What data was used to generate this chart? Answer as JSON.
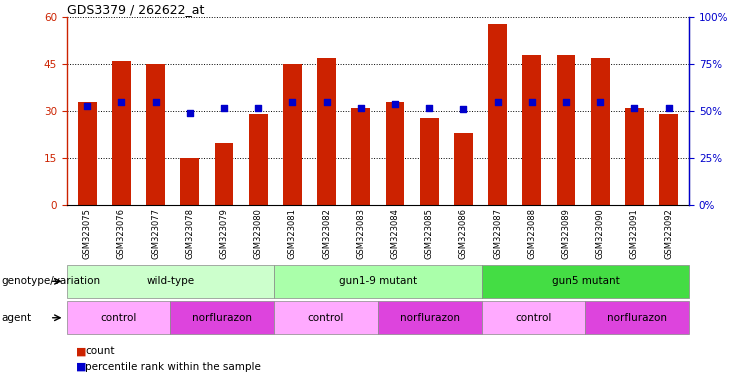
{
  "title": "GDS3379 / 262622_at",
  "samples": [
    "GSM323075",
    "GSM323076",
    "GSM323077",
    "GSM323078",
    "GSM323079",
    "GSM323080",
    "GSM323081",
    "GSM323082",
    "GSM323083",
    "GSM323084",
    "GSM323085",
    "GSM323086",
    "GSM323087",
    "GSM323088",
    "GSM323089",
    "GSM323090",
    "GSM323091",
    "GSM323092"
  ],
  "counts": [
    33,
    46,
    45,
    15,
    20,
    29,
    45,
    47,
    31,
    33,
    28,
    23,
    58,
    48,
    48,
    47,
    31,
    29
  ],
  "percentile_ranks": [
    53,
    55,
    55,
    49,
    52,
    52,
    55,
    55,
    52,
    54,
    52,
    51,
    55,
    55,
    55,
    55,
    52,
    52
  ],
  "bar_color": "#cc2200",
  "dot_color": "#0000cc",
  "ylim_left": [
    0,
    60
  ],
  "ylim_right": [
    0,
    100
  ],
  "yticks_left": [
    0,
    15,
    30,
    45,
    60
  ],
  "yticks_right": [
    0,
    25,
    50,
    75,
    100
  ],
  "ytick_labels_left": [
    "0",
    "15",
    "30",
    "45",
    "60"
  ],
  "ytick_labels_right": [
    "0%",
    "25%",
    "50%",
    "75%",
    "100%"
  ],
  "genotype_groups": [
    {
      "label": "wild-type",
      "start": 0,
      "end": 6,
      "color": "#ccffcc"
    },
    {
      "label": "gun1-9 mutant",
      "start": 6,
      "end": 12,
      "color": "#aaffaa"
    },
    {
      "label": "gun5 mutant",
      "start": 12,
      "end": 18,
      "color": "#44dd44"
    }
  ],
  "agent_groups": [
    {
      "label": "control",
      "start": 0,
      "end": 3,
      "color": "#ffaaff"
    },
    {
      "label": "norflurazon",
      "start": 3,
      "end": 6,
      "color": "#dd44dd"
    },
    {
      "label": "control",
      "start": 6,
      "end": 9,
      "color": "#ffaaff"
    },
    {
      "label": "norflurazon",
      "start": 9,
      "end": 12,
      "color": "#dd44dd"
    },
    {
      "label": "control",
      "start": 12,
      "end": 15,
      "color": "#ffaaff"
    },
    {
      "label": "norflurazon",
      "start": 15,
      "end": 18,
      "color": "#dd44dd"
    }
  ],
  "legend_count_color": "#cc2200",
  "legend_rank_color": "#0000cc",
  "genotype_label": "genotype/variation",
  "agent_label": "agent",
  "left_axis_color": "#cc2200",
  "right_axis_color": "#0000cc",
  "bg_color": "#ffffff"
}
